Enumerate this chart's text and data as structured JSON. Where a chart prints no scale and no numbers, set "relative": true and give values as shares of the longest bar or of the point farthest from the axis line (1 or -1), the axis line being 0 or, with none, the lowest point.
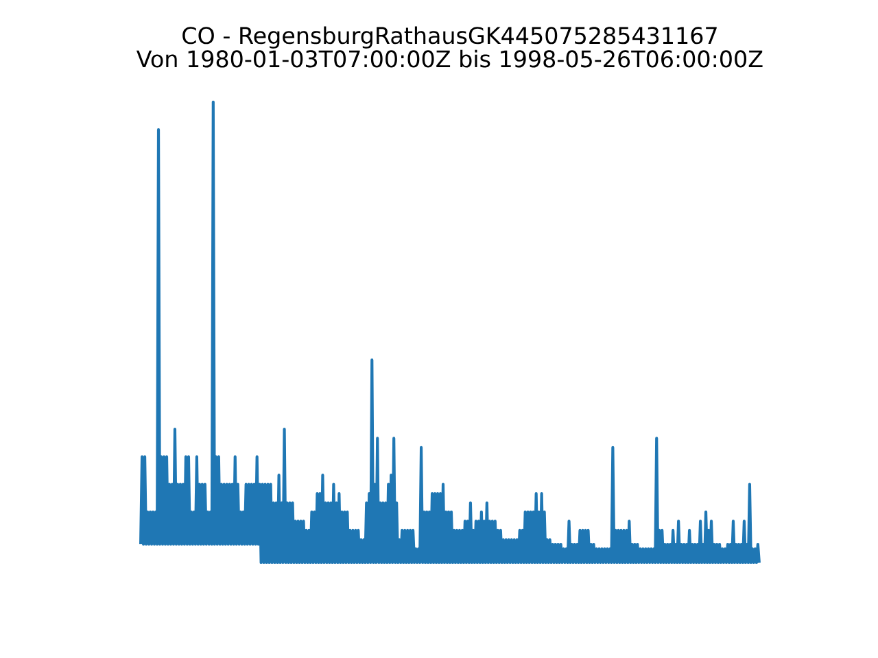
{
  "chart_data": {
    "type": "line",
    "title": "CO - RegensburgRathausGK445075285431167",
    "subtitle": "Von 1980-01-03T07:00:00Z bis 1998-05-26T06:00:00Z",
    "relative": true,
    "color": "#1f77b4",
    "categories": [
      null,
      null,
      null,
      null,
      null,
      null,
      null,
      null,
      null,
      null,
      null,
      null,
      null,
      null,
      null,
      null,
      null,
      null,
      null,
      null,
      null,
      null,
      null,
      null,
      null,
      null,
      null,
      null,
      null,
      null,
      null,
      null,
      null,
      null,
      null,
      null,
      null,
      null,
      null,
      null,
      null,
      null,
      null,
      null,
      null,
      null,
      null,
      null,
      null,
      null,
      null,
      null,
      null,
      null,
      null,
      null,
      null,
      null,
      null,
      null,
      null,
      null,
      null,
      null,
      null,
      null,
      null,
      null,
      null,
      null,
      null,
      null,
      null,
      null,
      null,
      null,
      null,
      null,
      null,
      null,
      null,
      null,
      null,
      null,
      null,
      null,
      null,
      null,
      null,
      null,
      null,
      null,
      null,
      null,
      null,
      null,
      null,
      null,
      null,
      null,
      null,
      null,
      null,
      null,
      null,
      null,
      null,
      null,
      null,
      null,
      null,
      null,
      null,
      null,
      null,
      null,
      null,
      null,
      null,
      null,
      null,
      null,
      null,
      null,
      null,
      null,
      null,
      null,
      null,
      null,
      null,
      null,
      null,
      null,
      null,
      null,
      null,
      null,
      null,
      null,
      null,
      null,
      null,
      null,
      null,
      null,
      null,
      null,
      null,
      null,
      null,
      null,
      null,
      null,
      null,
      null,
      null,
      null,
      null,
      null,
      null,
      null,
      null,
      null,
      null,
      null,
      null,
      null,
      null,
      null,
      null,
      null,
      null,
      null,
      null,
      null,
      null,
      null,
      null,
      null,
      null,
      null,
      null,
      null,
      null,
      null,
      null,
      null,
      null,
      null,
      null,
      null,
      null,
      null,
      null,
      null,
      null,
      null,
      null,
      null,
      null,
      null,
      null,
      null,
      null,
      null,
      null,
      null,
      null,
      null,
      null,
      null,
      null,
      null,
      null,
      null,
      null,
      null,
      null,
      null,
      null,
      null,
      null,
      null,
      null,
      null,
      null,
      null,
      null,
      null,
      null,
      null,
      null,
      null,
      null,
      null,
      null,
      null,
      null,
      null,
      null,
      null,
      null,
      null,
      null,
      null,
      null,
      null,
      null,
      null,
      null,
      null,
      null,
      null,
      null,
      null,
      null,
      null,
      null,
      null,
      null,
      null,
      null,
      null,
      null,
      null,
      null,
      null,
      null,
      null,
      null,
      null,
      null,
      null,
      null,
      null,
      null,
      null,
      null,
      null,
      null,
      null,
      null,
      null,
      null,
      null,
      null,
      null,
      null,
      null,
      null,
      null,
      null,
      null,
      null,
      null,
      null,
      null,
      null,
      null,
      null,
      null,
      null,
      null,
      null,
      null,
      null,
      null,
      null,
      null,
      null,
      null,
      null,
      null,
      null,
      null,
      null,
      null,
      null,
      null,
      null,
      null,
      null,
      null,
      null,
      null,
      null,
      null,
      null,
      null,
      null,
      null,
      null,
      null,
      null,
      null,
      null,
      null,
      null,
      null,
      null,
      null,
      null,
      null,
      null,
      null,
      null,
      null,
      null,
      null,
      null,
      null,
      null,
      null,
      null,
      null,
      null,
      null,
      null,
      null,
      null,
      null,
      null,
      null,
      null,
      null,
      null,
      null,
      null,
      null,
      null,
      null,
      null,
      null,
      null,
      null,
      null,
      null,
      null,
      null,
      null,
      null,
      null,
      null,
      null,
      null,
      null,
      null,
      null,
      null,
      null,
      null,
      null,
      null,
      null,
      null,
      null,
      null,
      null,
      null,
      null,
      null,
      null,
      null,
      null,
      null,
      null,
      null,
      null,
      null,
      null,
      null,
      null,
      null,
      null,
      null,
      null,
      null,
      null,
      null,
      null,
      null,
      null,
      null,
      null,
      null,
      null,
      null,
      null,
      null,
      null,
      null,
      null,
      null,
      null,
      null,
      null,
      null,
      null,
      null,
      null,
      null,
      null,
      null,
      null,
      null,
      null,
      null,
      null,
      null,
      null,
      null,
      null
    ],
    "values": [
      0.04,
      0.23,
      0.04,
      0.23,
      0.04,
      0.11,
      0.04,
      0.11,
      0.04,
      0.11,
      0.04,
      0.11,
      0.04,
      0.94,
      0.04,
      0.23,
      0.04,
      0.23,
      0.04,
      0.23,
      0.04,
      0.17,
      0.04,
      0.17,
      0.04,
      0.29,
      0.04,
      0.17,
      0.04,
      0.17,
      0.04,
      0.17,
      0.04,
      0.23,
      0.04,
      0.23,
      0.04,
      0.11,
      0.04,
      0.11,
      0.04,
      0.23,
      0.04,
      0.17,
      0.04,
      0.17,
      0.04,
      0.17,
      0.04,
      0.11,
      0.04,
      0.11,
      0.04,
      1.0,
      0.04,
      0.23,
      0.04,
      0.23,
      0.04,
      0.17,
      0.04,
      0.17,
      0.04,
      0.17,
      0.04,
      0.17,
      0.04,
      0.17,
      0.04,
      0.23,
      0.04,
      0.17,
      0.04,
      0.11,
      0.04,
      0.11,
      0.04,
      0.17,
      0.04,
      0.17,
      0.04,
      0.17,
      0.04,
      0.17,
      0.04,
      0.23,
      0.04,
      0.17,
      0,
      0.17,
      0,
      0.17,
      0,
      0.17,
      0,
      0.17,
      0,
      0.13,
      0,
      0.13,
      0,
      0.19,
      0,
      0.13,
      0,
      0.29,
      0,
      0.13,
      0,
      0.13,
      0,
      0.13,
      0,
      0.09,
      0,
      0.09,
      0,
      0.09,
      0,
      0.09,
      0,
      0.07,
      0,
      0.07,
      0,
      0.11,
      0,
      0.11,
      0,
      0.15,
      0,
      0.15,
      0,
      0.19,
      0,
      0.13,
      0,
      0.13,
      0,
      0.13,
      0,
      0.17,
      0,
      0.13,
      0,
      0.15,
      0,
      0.11,
      0,
      0.11,
      0,
      0.11,
      0,
      0.07,
      0,
      0.07,
      0,
      0.07,
      0,
      0.07,
      0,
      0.05,
      0,
      0.05,
      0,
      0.13,
      0,
      0.15,
      0,
      0.44,
      0,
      0.17,
      0,
      0.27,
      0,
      0.13,
      0,
      0.13,
      0,
      0.13,
      0,
      0.17,
      0,
      0.19,
      0,
      0.27,
      0,
      0.13,
      0,
      0.05,
      0,
      0.07,
      0,
      0.07,
      0,
      0.07,
      0,
      0.07,
      0,
      0.07,
      0,
      0.03,
      0,
      0.03,
      0,
      0.25,
      0,
      0.11,
      0,
      0.11,
      0,
      0.11,
      0,
      0.15,
      0,
      0.15,
      0,
      0.15,
      0,
      0.15,
      0,
      0.17,
      0,
      0.11,
      0,
      0.11,
      0,
      0.11,
      0,
      0.07,
      0,
      0.07,
      0,
      0.07,
      0,
      0.07,
      0,
      0.09,
      0,
      0.09,
      0,
      0.13,
      0,
      0.07,
      0,
      0.09,
      0,
      0.09,
      0,
      0.11,
      0,
      0.09,
      0,
      0.13,
      0,
      0.09,
      0,
      0.09,
      0,
      0.09,
      0,
      0.07,
      0,
      0.07,
      0,
      0.05,
      0,
      0.05,
      0,
      0.05,
      0,
      0.05,
      0,
      0.05,
      0,
      0.05,
      0,
      0.07,
      0,
      0.07,
      0,
      0.11,
      0,
      0.11,
      0,
      0.11,
      0,
      0.11,
      0,
      0.15,
      0,
      0.11,
      0,
      0.15,
      0,
      0.11,
      0,
      0.05,
      0,
      0.05,
      0,
      0.04,
      0,
      0.04,
      0,
      0.04,
      0,
      0.04,
      0,
      0.03,
      0,
      0.03,
      0,
      0.09,
      0,
      0.04,
      0,
      0.04,
      0,
      0.04,
      0,
      0.07,
      0,
      0.07,
      0,
      0.07,
      0,
      0.07,
      0,
      0.04,
      0,
      0.04,
      0,
      0.03,
      0,
      0.03,
      0,
      0.03,
      0,
      0.03,
      0,
      0.03,
      0,
      0.03,
      0,
      0.25,
      0,
      0.07,
      0,
      0.07,
      0,
      0.07,
      0,
      0.07,
      0,
      0.07,
      0,
      0.09,
      0,
      0.04,
      0,
      0.04,
      0,
      0.04,
      0,
      0.03,
      0,
      0.03,
      0,
      0.03,
      0,
      0.03,
      0,
      0.03,
      0,
      0.03,
      0,
      0.27,
      0,
      0.07,
      0,
      0.07,
      0,
      0.04,
      0,
      0.04,
      0,
      0.04,
      0,
      0.07,
      0,
      0.04,
      0,
      0.09,
      0,
      0.04,
      0,
      0.04,
      0,
      0.04,
      0,
      0.07,
      0,
      0.04,
      0,
      0.04,
      0,
      0.04,
      0,
      0.09,
      0,
      0.04,
      0,
      0.11,
      0,
      0.07,
      0,
      0.09,
      0,
      0.04,
      0,
      0.04,
      0,
      0.04,
      0,
      0.03,
      0,
      0.03,
      0,
      0.04,
      0,
      0.04,
      0,
      0.09,
      0,
      0.04,
      0,
      0.04,
      0,
      0.04,
      0,
      0.09,
      0,
      0.04,
      0,
      0.17,
      0,
      0.03,
      0,
      0.03,
      0,
      0.04,
      0
    ]
  }
}
